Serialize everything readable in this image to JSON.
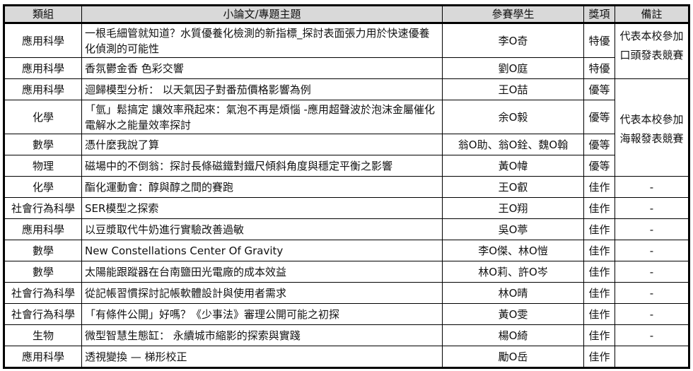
{
  "headers": [
    "類組",
    "小論文/專題主題",
    "參賽學生",
    "獎項",
    "備註"
  ],
  "rows": [
    {
      "category": "應用科學",
      "topic": "一根毛細管就知道？水質優養化檢測的新指標_探討表面張力用於快速優養化偵測的可能性",
      "students": "李O奇",
      "award": "特優",
      "note": "代表本校參加口頭發表競賽"
    },
    {
      "category": "應用科學",
      "topic": "香氛鬱金香 色彩交響",
      "students": "劉O庭",
      "award": "特優"
    },
    {
      "category": "應用科學",
      "topic": "迴歸模型分析： 以天氣因子對番茄價格影響為例",
      "students": "王O喆",
      "award": "優等",
      "note": "代表本校參加海報發表競賽"
    },
    {
      "category": "化學",
      "topic": "「氫」鬆搞定 讓效率飛起來：氣泡不再是煩惱 -應用超聲波於泡沫金屬催化電解水之能量效率探討",
      "students": "余O毅",
      "award": "優等"
    },
    {
      "category": "數學",
      "topic": "憑什麼我說了算",
      "students": "翁O助、翁O銓、魏O翰",
      "award": "優等"
    },
    {
      "category": "物理",
      "topic": "磁場中的不倒翁：探討長條磁鐵對鐵尺傾斜角度與穩定平衡之影響",
      "students": "黃O幃",
      "award": "優等"
    },
    {
      "category": "化學",
      "topic": "酯化運動會：醇與醇之間的賽跑",
      "students": "王O叡",
      "award": "佳作",
      "note": "-"
    },
    {
      "category": "社會行為科學",
      "topic": "SER模型之探索",
      "students": "王O翔",
      "award": "佳作",
      "note": "-"
    },
    {
      "category": "應用科學",
      "topic": "以豆漿取代牛奶進行實驗改善過敏",
      "students": "吳O葶",
      "award": "佳作",
      "note": "-"
    },
    {
      "category": "數學",
      "topic": "New Constellations Center Of Gravity",
      "students": "李O傑、林O愷",
      "award": "佳作",
      "note": "-"
    },
    {
      "category": "數學",
      "topic": "太陽能跟蹤器在台南鹽田光電廠的成本效益",
      "students": "林O莉、許O岑",
      "award": "佳作",
      "note": "-"
    },
    {
      "category": "社會行為科學",
      "topic": "從記帳習慣探討記帳軟體設計與使用者需求",
      "students": "林O晴",
      "award": "佳作",
      "note": "-"
    },
    {
      "category": "社會行為科學",
      "topic": "「有條件公開」好嗎？《少事法》審理公開可能之初探",
      "students": "黃O雯",
      "award": "佳作",
      "note": "-"
    },
    {
      "category": "生物",
      "topic": "微型智慧生態缸： 永續城市縮影的探索與實踐",
      "students": "楊O綺",
      "award": "佳作",
      "note": "-"
    },
    {
      "category": "應用科學",
      "topic": "透視變換 — 梯形校正",
      "students": "勵O岳",
      "award": "佳作",
      "note": ""
    }
  ]
}
